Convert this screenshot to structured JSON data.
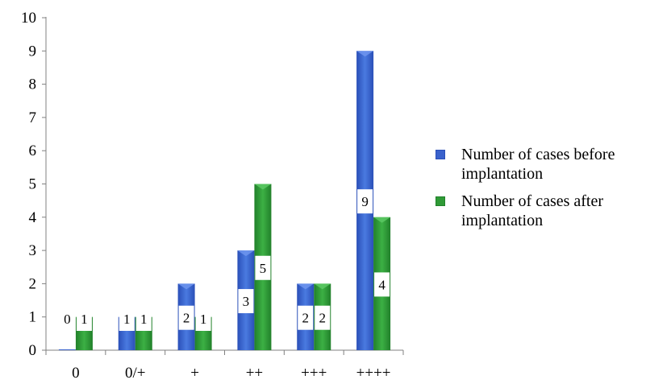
{
  "chart_data": {
    "type": "bar",
    "categories": [
      "0",
      "0/+",
      "+",
      "++",
      "+++",
      "++++"
    ],
    "series": [
      {
        "name": "Number of cases before implantation",
        "values": [
          0,
          1,
          2,
          3,
          2,
          9
        ],
        "color": "#3a62cc"
      },
      {
        "name": "Number of cases after implantation",
        "values": [
          1,
          1,
          1,
          5,
          2,
          4
        ],
        "color": "#2f9a36"
      }
    ],
    "ylim": [
      0,
      10
    ],
    "yticks": [
      "0",
      "1",
      "2",
      "3",
      "4",
      "5",
      "6",
      "7",
      "8",
      "9",
      "10"
    ],
    "data_labels": true,
    "grid": false,
    "legend_position": "right"
  }
}
